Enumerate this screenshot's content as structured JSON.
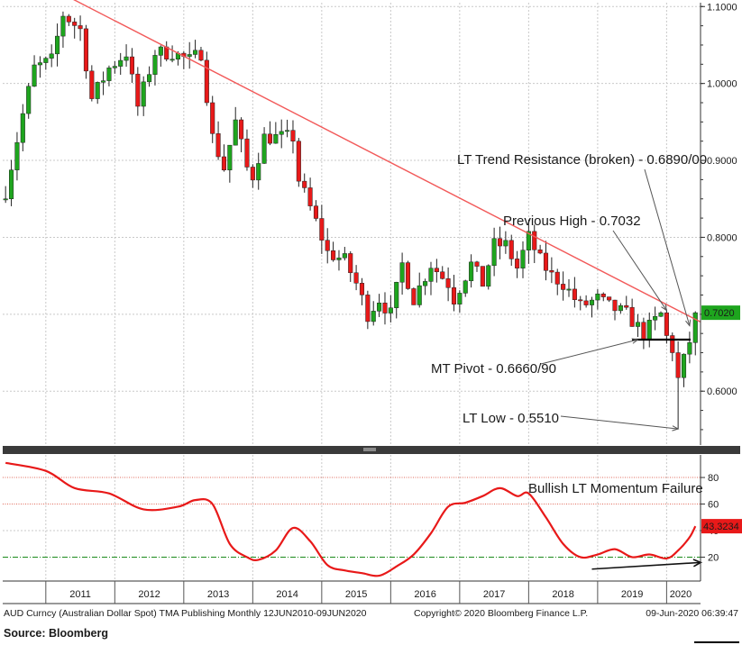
{
  "chart_data": [
    {
      "type": "candlestick",
      "frequency": "monthly",
      "x_range": [
        "2010-06",
        "2020-06"
      ],
      "ylim": [
        0.53,
        1.105
      ],
      "y_ticks": [
        "0.6000",
        "0.7000",
        "0.8000",
        "0.9000",
        "1.0000",
        "1.1000"
      ],
      "last_value_label": "0.7020",
      "colors": {
        "up": "#1ea51e",
        "down": "#e81919",
        "trend": "#f25a5a",
        "pivot": "#000000",
        "last_label_bg": "#1ea51e"
      },
      "x_ticks": [
        "2011",
        "2012",
        "2013",
        "2014",
        "2015",
        "2016",
        "2017",
        "2018",
        "2019",
        "2020"
      ],
      "ohlc_anchors": [
        [
          "2010-06",
          0.86
        ],
        [
          "2010-09",
          0.96
        ],
        [
          "2010-11",
          1.02
        ],
        [
          "2011-02",
          1.03
        ],
        [
          "2011-04",
          1.09
        ],
        [
          "2011-07",
          1.07
        ],
        [
          "2011-09",
          0.98
        ],
        [
          "2011-12",
          1.02
        ],
        [
          "2012-03",
          1.04
        ],
        [
          "2012-05",
          0.97
        ],
        [
          "2012-08",
          1.04
        ],
        [
          "2012-11",
          1.04
        ],
        [
          "2013-02",
          1.03
        ],
        [
          "2013-04",
          1.04
        ],
        [
          "2013-06",
          0.93
        ],
        [
          "2013-08",
          0.89
        ],
        [
          "2013-10",
          0.95
        ],
        [
          "2013-12",
          0.89
        ],
        [
          "2014-01",
          0.88
        ],
        [
          "2014-03",
          0.93
        ],
        [
          "2014-05",
          0.93
        ],
        [
          "2014-08",
          0.93
        ],
        [
          "2014-09",
          0.875
        ],
        [
          "2014-12",
          0.82
        ],
        [
          "2015-02",
          0.78
        ],
        [
          "2015-05",
          0.77
        ],
        [
          "2015-07",
          0.74
        ],
        [
          "2015-09",
          0.7
        ],
        [
          "2015-11",
          0.72
        ],
        [
          "2016-01",
          0.7
        ],
        [
          "2016-03",
          0.765
        ],
        [
          "2016-05",
          0.72
        ],
        [
          "2016-08",
          0.765
        ],
        [
          "2016-11",
          0.74
        ],
        [
          "2016-12",
          0.72
        ],
        [
          "2017-03",
          0.765
        ],
        [
          "2017-05",
          0.74
        ],
        [
          "2017-07",
          0.79
        ],
        [
          "2017-09",
          0.79
        ],
        [
          "2017-11",
          0.76
        ],
        [
          "2018-01",
          0.8
        ],
        [
          "2018-03",
          0.77
        ],
        [
          "2018-05",
          0.75
        ],
        [
          "2018-07",
          0.74
        ],
        [
          "2018-10",
          0.71
        ],
        [
          "2019-01",
          0.72
        ],
        [
          "2019-03",
          0.71
        ],
        [
          "2019-06",
          0.7
        ],
        [
          "2019-09",
          0.675
        ],
        [
          "2019-12",
          0.7
        ],
        [
          "2020-01",
          0.67
        ],
        [
          "2020-02",
          0.655
        ],
        [
          "2020-03",
          0.615
        ],
        [
          "2020-04",
          0.64
        ],
        [
          "2020-05",
          0.665
        ],
        [
          "2020-06",
          0.702
        ]
      ],
      "trend_line": {
        "label": "LT Trend Resistance (broken) - 0.6890/00",
        "from": [
          "2011-03",
          1.12
        ],
        "to": [
          "2020-06",
          0.69
        ]
      },
      "annotations": [
        {
          "text": "LT Trend Resistance (broken) - 0.6890/00",
          "points_to": [
            "2020-05",
            0.685
          ]
        },
        {
          "text": "Previous High - 0.7032",
          "points_to": [
            "2020-01",
            0.705
          ]
        },
        {
          "text": "MT Pivot - 0.6660/90",
          "points_to": [
            "2019-08",
            0.667
          ]
        },
        {
          "text": "LT Low - 0.5510",
          "points_to": [
            "2020-03",
            0.551
          ]
        }
      ],
      "pivot_level": 0.667
    },
    {
      "type": "line",
      "name": "momentum",
      "ylim": [
        2,
        97
      ],
      "y_ticks": [
        "20",
        "40",
        "60",
        "80"
      ],
      "last_value_label": "43.3234",
      "reference_levels": [
        80,
        60,
        20
      ],
      "colors": {
        "line": "#e81919",
        "label_bg": "#e81919"
      },
      "x": [
        "2010-06",
        "2011-01",
        "2011-06",
        "2011-12",
        "2012-06",
        "2012-12",
        "2013-03",
        "2013-06",
        "2013-09",
        "2013-12",
        "2014-02",
        "2014-05",
        "2014-08",
        "2014-11",
        "2015-02",
        "2015-05",
        "2015-08",
        "2015-11",
        "2016-02",
        "2016-05",
        "2016-08",
        "2016-11",
        "2017-02",
        "2017-05",
        "2017-08",
        "2017-11",
        "2018-01",
        "2018-04",
        "2018-07",
        "2018-10",
        "2019-01",
        "2019-04",
        "2019-07",
        "2019-10",
        "2020-01",
        "2020-03",
        "2020-05",
        "2020-06"
      ],
      "values": [
        91,
        85,
        72,
        68,
        56,
        58,
        63,
        60,
        30,
        20,
        18,
        25,
        42,
        32,
        14,
        10,
        8,
        6,
        13,
        22,
        38,
        58,
        61,
        66,
        72,
        66,
        68,
        50,
        30,
        20,
        22,
        26,
        20,
        22,
        19,
        25,
        35,
        43.32
      ],
      "annotations": [
        {
          "text": "Bullish LT Momentum Failure"
        }
      ],
      "arrow": {
        "from": [
          "2018-12",
          11
        ],
        "to": [
          "2020-06",
          16
        ]
      }
    }
  ],
  "footer": {
    "left": "AUD Curncy (Australian Dollar Spot) TMA Publishing  Monthly 12JUN2010-09JUN2020",
    "center": "Copyright© 2020 Bloomberg Finance L.P.",
    "right": "09-Jun-2020 06:39:47",
    "source": "Source: Bloomberg"
  }
}
